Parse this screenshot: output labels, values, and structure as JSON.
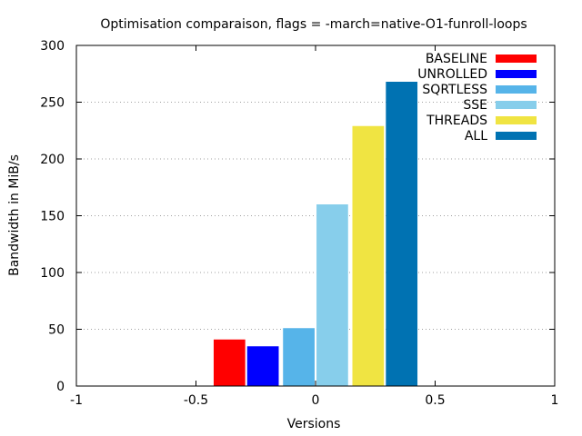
{
  "chart_data": {
    "type": "bar",
    "title": "Optimisation comparaison, flags = -march=native-O1-funroll-loops",
    "xlabel": "Versions",
    "ylabel": "Bandwidth in MiB/s",
    "xlim": [
      -1,
      1
    ],
    "ylim": [
      0,
      300
    ],
    "xticks": [
      -1,
      -0.5,
      0,
      0.5,
      1
    ],
    "yticks": [
      0,
      50,
      100,
      150,
      200,
      250,
      300
    ],
    "xtick_labels": [
      "-1",
      "-0.5",
      "0",
      "0.5",
      "1"
    ],
    "ytick_labels": [
      "0",
      "50",
      "100",
      "150",
      "200",
      "250",
      "300"
    ],
    "grid": "horizontal-dotted",
    "legend_position": "top-right",
    "series": [
      {
        "name": "BASELINE",
        "x": -0.36,
        "value": 41,
        "color": "#ff0000"
      },
      {
        "name": "UNROLLED",
        "x": -0.22,
        "value": 35,
        "color": "#0000ff"
      },
      {
        "name": "SQRTLESS",
        "x": -0.07,
        "value": 51,
        "color": "#56b4e9"
      },
      {
        "name": "SSE",
        "x": 0.07,
        "value": 160,
        "color": "#87ceeb"
      },
      {
        "name": "THREADS",
        "x": 0.22,
        "value": 229,
        "color": "#f0e442"
      },
      {
        "name": "ALL",
        "x": 0.36,
        "value": 268,
        "color": "#0072b2"
      }
    ]
  }
}
